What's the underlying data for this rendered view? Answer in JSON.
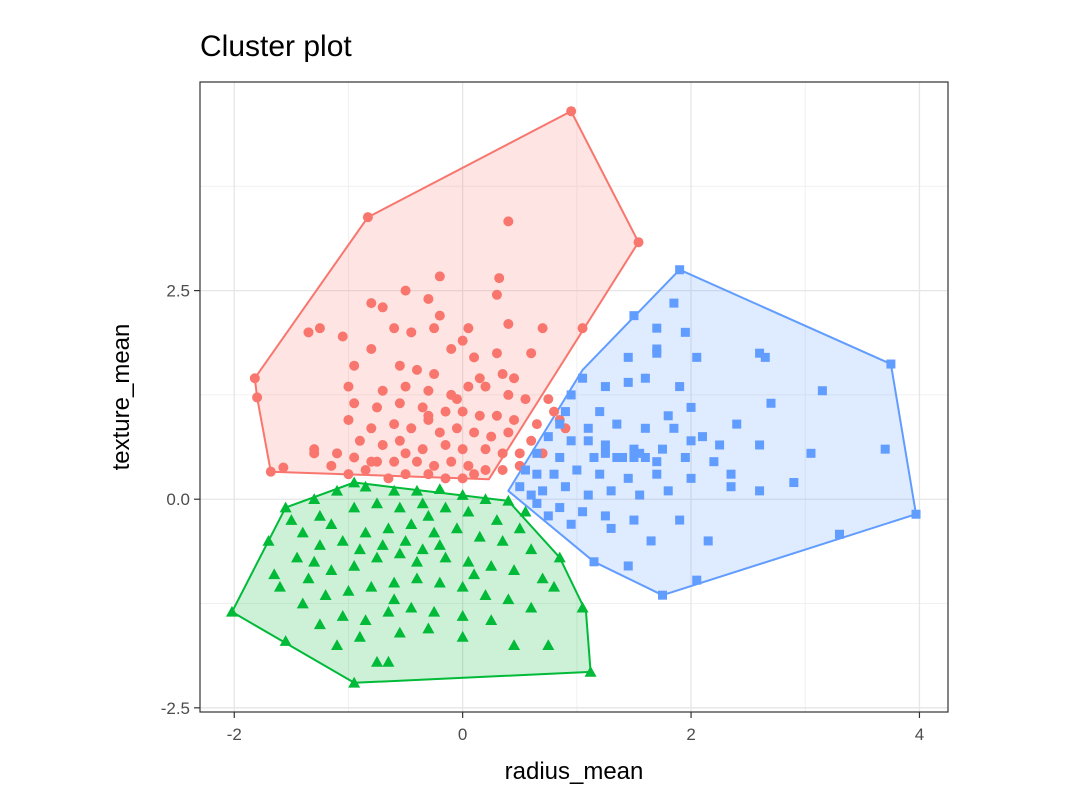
{
  "chart_data": {
    "type": "scatter",
    "title": "Cluster plot",
    "xlabel": "radius_mean",
    "ylabel": "texture_mean",
    "xlim": [
      -2.3,
      4.25
    ],
    "ylim": [
      -2.55,
      5.0
    ],
    "xticks": [
      -2,
      0,
      2,
      4
    ],
    "xtick_labels": [
      "-2",
      "0",
      "2",
      "4"
    ],
    "yticks": [
      -2.5,
      0.0,
      2.5
    ],
    "ytick_labels": [
      "-2.5",
      "0.0",
      "2.5"
    ],
    "grid": true,
    "legend": "none",
    "series": [
      {
        "color": "#F8766D",
        "marker": "circle",
        "hull": [
          [
            -1.82,
            1.45
          ],
          [
            -0.83,
            3.38
          ],
          [
            0.95,
            4.65
          ],
          [
            1.54,
            3.08
          ],
          [
            0.23,
            0.24
          ],
          [
            -1.68,
            0.33
          ],
          [
            -1.8,
            1.22
          ]
        ],
        "points": [
          [
            -0.83,
            3.38
          ],
          [
            0.95,
            4.65
          ],
          [
            1.54,
            3.08
          ],
          [
            -1.82,
            1.45
          ],
          [
            -1.8,
            1.22
          ],
          [
            -1.68,
            0.33
          ],
          [
            -1.57,
            0.38
          ],
          [
            0.4,
            3.33
          ],
          [
            -0.2,
            2.67
          ],
          [
            0.32,
            2.65
          ],
          [
            0.3,
            2.45
          ],
          [
            -0.5,
            2.5
          ],
          [
            -0.8,
            2.35
          ],
          [
            -0.7,
            2.3
          ],
          [
            -0.3,
            2.4
          ],
          [
            -0.2,
            2.2
          ],
          [
            0.05,
            2.05
          ],
          [
            0.4,
            2.1
          ],
          [
            0.7,
            2.05
          ],
          [
            1.05,
            2.05
          ],
          [
            -1.35,
            2.0
          ],
          [
            -1.25,
            2.05
          ],
          [
            -1.05,
            1.95
          ],
          [
            -0.6,
            2.05
          ],
          [
            -0.45,
            2.0
          ],
          [
            -0.25,
            2.05
          ],
          [
            -0.1,
            1.8
          ],
          [
            0.0,
            1.9
          ],
          [
            0.1,
            1.7
          ],
          [
            0.3,
            1.75
          ],
          [
            0.6,
            1.75
          ],
          [
            -0.8,
            1.8
          ],
          [
            -0.95,
            1.6
          ],
          [
            -0.55,
            1.6
          ],
          [
            -0.4,
            1.55
          ],
          [
            -0.25,
            1.5
          ],
          [
            0.15,
            1.45
          ],
          [
            0.35,
            1.5
          ],
          [
            0.45,
            1.45
          ],
          [
            -1.0,
            1.35
          ],
          [
            -0.7,
            1.3
          ],
          [
            -0.5,
            1.35
          ],
          [
            -0.3,
            1.3
          ],
          [
            -0.1,
            1.25
          ],
          [
            0.05,
            1.35
          ],
          [
            0.2,
            1.35
          ],
          [
            0.4,
            1.25
          ],
          [
            0.55,
            1.2
          ],
          [
            0.75,
            1.2
          ],
          [
            -0.95,
            1.15
          ],
          [
            -0.75,
            1.1
          ],
          [
            -0.55,
            1.15
          ],
          [
            -0.35,
            1.1
          ],
          [
            -0.15,
            1.05
          ],
          [
            -0.3,
            1.0
          ],
          [
            -0.3,
            0.95
          ],
          [
            0.0,
            1.05
          ],
          [
            0.15,
            1.0
          ],
          [
            0.3,
            1.0
          ],
          [
            0.45,
            0.95
          ],
          [
            0.65,
            0.9
          ],
          [
            0.85,
            0.95
          ],
          [
            -1.0,
            0.95
          ],
          [
            -0.8,
            0.85
          ],
          [
            -0.6,
            0.9
          ],
          [
            -0.45,
            0.85
          ],
          [
            -0.2,
            0.8
          ],
          [
            -0.05,
            0.85
          ],
          [
            0.1,
            0.8
          ],
          [
            0.25,
            0.75
          ],
          [
            0.4,
            0.8
          ],
          [
            0.6,
            0.7
          ],
          [
            -0.9,
            0.7
          ],
          [
            -0.7,
            0.65
          ],
          [
            -0.55,
            0.7
          ],
          [
            -0.35,
            0.6
          ],
          [
            -0.15,
            0.65
          ],
          [
            0.0,
            0.6
          ],
          [
            0.2,
            0.6
          ],
          [
            0.35,
            0.55
          ],
          [
            0.5,
            0.55
          ],
          [
            0.7,
            0.55
          ],
          [
            -1.3,
            0.55
          ],
          [
            -1.1,
            0.55
          ],
          [
            -0.95,
            0.5
          ],
          [
            -0.75,
            0.45
          ],
          [
            -0.6,
            0.45
          ],
          [
            -0.4,
            0.45
          ],
          [
            -0.25,
            0.4
          ],
          [
            -0.1,
            0.45
          ],
          [
            0.05,
            0.4
          ],
          [
            0.2,
            0.35
          ],
          [
            0.35,
            0.35
          ],
          [
            -1.15,
            0.4
          ],
          [
            -0.85,
            0.35
          ],
          [
            -0.5,
            0.3
          ],
          [
            -0.3,
            0.3
          ],
          [
            -0.15,
            0.25
          ],
          [
            0.0,
            0.25
          ],
          [
            0.1,
            0.3
          ],
          [
            -0.65,
            0.25
          ],
          [
            -1.0,
            0.3
          ],
          [
            -0.8,
            0.45
          ],
          [
            0.5,
            0.4
          ],
          [
            0.8,
            1.05
          ],
          [
            0.9,
            0.85
          ],
          [
            -0.05,
            1.2
          ],
          [
            -1.3,
            0.6
          ],
          [
            -0.5,
            0.55
          ]
        ]
      },
      {
        "color": "#619CFF",
        "marker": "square",
        "hull": [
          [
            0.4,
            0.1
          ],
          [
            1.05,
            1.55
          ],
          [
            1.9,
            2.75
          ],
          [
            3.75,
            1.62
          ],
          [
            3.97,
            -0.18
          ],
          [
            1.75,
            -1.15
          ],
          [
            1.15,
            -0.75
          ]
        ],
        "points": [
          [
            1.9,
            2.75
          ],
          [
            3.75,
            1.62
          ],
          [
            3.97,
            -0.18
          ],
          [
            1.75,
            -1.15
          ],
          [
            2.05,
            -0.97
          ],
          [
            3.3,
            -0.42
          ],
          [
            1.85,
            2.35
          ],
          [
            1.5,
            2.2
          ],
          [
            1.7,
            2.05
          ],
          [
            1.95,
            2.0
          ],
          [
            1.45,
            1.7
          ],
          [
            1.7,
            1.75
          ],
          [
            1.7,
            1.8
          ],
          [
            2.6,
            1.75
          ],
          [
            2.65,
            1.7
          ],
          [
            2.05,
            1.7
          ],
          [
            3.15,
            1.3
          ],
          [
            2.7,
            1.15
          ],
          [
            1.05,
            1.45
          ],
          [
            0.95,
            1.25
          ],
          [
            1.25,
            1.35
          ],
          [
            1.45,
            1.4
          ],
          [
            1.6,
            1.45
          ],
          [
            1.9,
            1.35
          ],
          [
            2.0,
            1.1
          ],
          [
            1.2,
            1.05
          ],
          [
            0.9,
            1.05
          ],
          [
            0.85,
            0.9
          ],
          [
            1.1,
            0.85
          ],
          [
            1.35,
            0.9
          ],
          [
            1.6,
            0.85
          ],
          [
            1.85,
            0.85
          ],
          [
            2.1,
            0.75
          ],
          [
            0.75,
            0.75
          ],
          [
            0.95,
            0.7
          ],
          [
            1.25,
            0.65
          ],
          [
            1.5,
            0.6
          ],
          [
            1.75,
            0.6
          ],
          [
            2.0,
            0.7
          ],
          [
            2.25,
            0.65
          ],
          [
            0.65,
            0.55
          ],
          [
            0.85,
            0.5
          ],
          [
            1.15,
            0.5
          ],
          [
            1.4,
            0.5
          ],
          [
            1.55,
            0.55
          ],
          [
            1.7,
            0.45
          ],
          [
            1.95,
            0.5
          ],
          [
            2.2,
            0.45
          ],
          [
            2.6,
            0.65
          ],
          [
            3.05,
            0.55
          ],
          [
            3.7,
            0.6
          ],
          [
            0.55,
            0.35
          ],
          [
            0.8,
            0.3
          ],
          [
            1.0,
            0.35
          ],
          [
            1.2,
            0.3
          ],
          [
            1.45,
            0.25
          ],
          [
            1.7,
            0.3
          ],
          [
            2.0,
            0.25
          ],
          [
            2.35,
            0.3
          ],
          [
            2.9,
            0.2
          ],
          [
            0.5,
            0.15
          ],
          [
            0.7,
            0.1
          ],
          [
            0.9,
            0.15
          ],
          [
            1.1,
            0.05
          ],
          [
            1.3,
            0.1
          ],
          [
            1.55,
            0.05
          ],
          [
            1.8,
            0.1
          ],
          [
            2.35,
            0.15
          ],
          [
            2.6,
            0.1
          ],
          [
            0.65,
            -0.05
          ],
          [
            0.85,
            -0.1
          ],
          [
            1.05,
            -0.15
          ],
          [
            1.25,
            -0.2
          ],
          [
            1.5,
            -0.25
          ],
          [
            1.9,
            -0.25
          ],
          [
            0.95,
            -0.3
          ],
          [
            1.3,
            -0.35
          ],
          [
            1.65,
            -0.5
          ],
          [
            2.15,
            -0.5
          ],
          [
            1.15,
            -0.75
          ],
          [
            1.45,
            -0.8
          ],
          [
            0.65,
            0.3
          ],
          [
            1.25,
            0.55
          ],
          [
            1.35,
            0.5
          ],
          [
            1.5,
            0.5
          ],
          [
            1.6,
            0.5
          ],
          [
            1.1,
            0.7
          ],
          [
            2.4,
            0.9
          ],
          [
            1.8,
            1.0
          ],
          [
            0.6,
            0.05
          ],
          [
            0.75,
            -0.2
          ]
        ]
      },
      {
        "color": "#00BA38",
        "marker": "triangle",
        "hull": [
          [
            -2.02,
            -1.35
          ],
          [
            -0.95,
            -2.2
          ],
          [
            1.12,
            -2.07
          ],
          [
            1.08,
            -1.35
          ],
          [
            0.85,
            -0.7
          ],
          [
            0.4,
            -0.02
          ],
          [
            -0.95,
            0.2
          ],
          [
            -1.55,
            -0.1
          ]
        ],
        "points": [
          [
            -2.02,
            -1.35
          ],
          [
            -0.95,
            -2.2
          ],
          [
            1.12,
            -2.07
          ],
          [
            -1.55,
            -1.7
          ],
          [
            0.45,
            -1.75
          ],
          [
            -0.75,
            -1.95
          ],
          [
            -0.65,
            -1.95
          ],
          [
            0.75,
            -1.75
          ],
          [
            1.05,
            -1.3
          ],
          [
            0.85,
            -0.7
          ],
          [
            0.4,
            -0.02
          ],
          [
            -0.95,
            0.2
          ],
          [
            -1.55,
            -0.1
          ],
          [
            -1.7,
            -0.5
          ],
          [
            -1.65,
            -0.9
          ],
          [
            -1.4,
            -0.4
          ],
          [
            -1.25,
            -0.2
          ],
          [
            -1.1,
            0.1
          ],
          [
            -0.85,
            0.15
          ],
          [
            -0.6,
            0.1
          ],
          [
            -0.4,
            0.1
          ],
          [
            -0.2,
            0.12
          ],
          [
            0.0,
            0.05
          ],
          [
            0.2,
            0.0
          ],
          [
            -1.5,
            -0.25
          ],
          [
            -1.3,
            0.0
          ],
          [
            -1.15,
            -0.3
          ],
          [
            -0.95,
            -0.1
          ],
          [
            -0.75,
            -0.05
          ],
          [
            -0.55,
            -0.1
          ],
          [
            -0.35,
            -0.05
          ],
          [
            -0.15,
            -0.1
          ],
          [
            0.05,
            -0.15
          ],
          [
            0.3,
            -0.25
          ],
          [
            0.5,
            -0.35
          ],
          [
            -1.45,
            -0.7
          ],
          [
            -1.25,
            -0.55
          ],
          [
            -1.05,
            -0.5
          ],
          [
            -0.85,
            -0.4
          ],
          [
            -0.65,
            -0.35
          ],
          [
            -0.45,
            -0.3
          ],
          [
            -0.25,
            -0.4
          ],
          [
            -0.05,
            -0.35
          ],
          [
            0.15,
            -0.45
          ],
          [
            0.35,
            -0.5
          ],
          [
            0.6,
            -0.6
          ],
          [
            -1.6,
            -1.05
          ],
          [
            -1.35,
            -0.95
          ],
          [
            -1.15,
            -0.85
          ],
          [
            -0.95,
            -0.8
          ],
          [
            -0.75,
            -0.7
          ],
          [
            -0.55,
            -0.65
          ],
          [
            -0.35,
            -0.6
          ],
          [
            -0.15,
            -0.7
          ],
          [
            0.05,
            -0.75
          ],
          [
            0.25,
            -0.8
          ],
          [
            0.45,
            -0.85
          ],
          [
            0.7,
            -0.95
          ],
          [
            -1.4,
            -1.25
          ],
          [
            -1.2,
            -1.15
          ],
          [
            -1.0,
            -1.1
          ],
          [
            -0.8,
            -1.05
          ],
          [
            -0.6,
            -1.0
          ],
          [
            -0.4,
            -0.95
          ],
          [
            -0.2,
            -1.0
          ],
          [
            0.0,
            -1.05
          ],
          [
            0.2,
            -1.15
          ],
          [
            0.4,
            -1.2
          ],
          [
            0.6,
            -1.3
          ],
          [
            -1.25,
            -1.5
          ],
          [
            -1.05,
            -1.4
          ],
          [
            -0.85,
            -1.45
          ],
          [
            -0.65,
            -1.35
          ],
          [
            -0.45,
            -1.3
          ],
          [
            -0.25,
            -1.35
          ],
          [
            0.0,
            -1.4
          ],
          [
            0.25,
            -1.45
          ],
          [
            -1.1,
            -1.75
          ],
          [
            -0.9,
            -1.65
          ],
          [
            -0.55,
            -1.6
          ],
          [
            -0.3,
            -1.55
          ],
          [
            0.0,
            -1.65
          ],
          [
            -0.5,
            -0.5
          ],
          [
            -0.3,
            -0.2
          ],
          [
            -0.7,
            -0.55
          ],
          [
            -0.4,
            -0.75
          ],
          [
            -0.2,
            -0.55
          ],
          [
            0.1,
            -0.9
          ],
          [
            -0.6,
            -1.2
          ],
          [
            -0.9,
            -0.6
          ],
          [
            -1.3,
            -0.75
          ],
          [
            0.8,
            -1.05
          ],
          [
            0.55,
            -0.15
          ]
        ]
      }
    ]
  }
}
